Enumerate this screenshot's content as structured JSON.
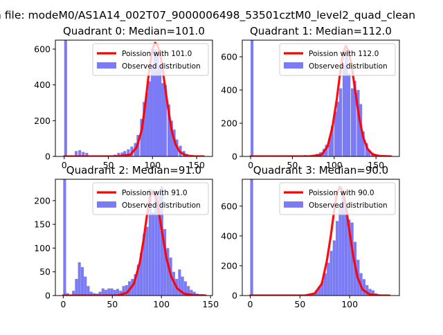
{
  "suptitle": "n file: modeM0/AS1A14_002T07_9000006498_53501cztM0_level2_quad_clean",
  "colors": {
    "bar": "#7b7bf5",
    "line": "#ff0000",
    "axis": "#000000",
    "background": "#ffffff"
  },
  "chart_data": [
    {
      "type": "bar",
      "title": "Quadrant 0: Median=101.0",
      "xlim": [
        -10,
        168
      ],
      "ylim": [
        0,
        650
      ],
      "xticks": [
        0,
        50,
        100,
        150
      ],
      "yticks": [
        0,
        200,
        400,
        600
      ],
      "legend_placement": "top-right",
      "series": [
        {
          "name": "Poission with 101.0",
          "kind": "line",
          "x": [
            0,
            60,
            75,
            82,
            88,
            92,
            96,
            100,
            103,
            106,
            110,
            114,
            118,
            122,
            126,
            131,
            138,
            148,
            158
          ],
          "y": [
            0,
            0,
            10,
            50,
            150,
            300,
            470,
            600,
            635,
            620,
            540,
            400,
            260,
            140,
            70,
            25,
            5,
            0,
            0
          ]
        },
        {
          "name": "Observed distribution",
          "kind": "bar",
          "bin_width": 3.2,
          "bins": [
            [
              0,
              650
            ],
            [
              4,
              5
            ],
            [
              12,
              30
            ],
            [
              16,
              35
            ],
            [
              20,
              25
            ],
            [
              24,
              20
            ],
            [
              56,
              10
            ],
            [
              60,
              20
            ],
            [
              64,
              22
            ],
            [
              67,
              30
            ],
            [
              71,
              40
            ],
            [
              75,
              55
            ],
            [
              79,
              75
            ],
            [
              82,
              120
            ],
            [
              86,
              210
            ],
            [
              89,
              305
            ],
            [
              92,
              355
            ],
            [
              95,
              420
            ],
            [
              98,
              510
            ],
            [
              101,
              600
            ],
            [
              104,
              590
            ],
            [
              107,
              510
            ],
            [
              110,
              410
            ],
            [
              113,
              400
            ],
            [
              117,
              290
            ],
            [
              120,
              200
            ],
            [
              123,
              150
            ],
            [
              126,
              95
            ],
            [
              130,
              60
            ],
            [
              134,
              30
            ],
            [
              137,
              15
            ],
            [
              142,
              6
            ],
            [
              150,
              3
            ]
          ]
        }
      ]
    },
    {
      "type": "bar",
      "title": "Quadrant 1: Median=112.0",
      "xlim": [
        -10,
        178
      ],
      "ylim": [
        0,
        700
      ],
      "xticks": [
        0,
        50,
        100,
        150
      ],
      "yticks": [
        0,
        200,
        400,
        600
      ],
      "legend_placement": "top-right",
      "series": [
        {
          "name": "Poission with 112.0",
          "kind": "line",
          "x": [
            0,
            70,
            85,
            92,
            98,
            103,
            107,
            111,
            114,
            117,
            121,
            125,
            130,
            135,
            140,
            146,
            155,
            168
          ],
          "y": [
            0,
            0,
            10,
            60,
            180,
            340,
            500,
            630,
            665,
            640,
            540,
            400,
            230,
            110,
            45,
            12,
            2,
            0
          ]
        },
        {
          "name": "Observed distribution",
          "kind": "bar",
          "bin_width": 3.4,
          "bins": [
            [
              0,
              700
            ],
            [
              4,
              5
            ],
            [
              8,
              4
            ],
            [
              30,
              4
            ],
            [
              50,
              4
            ],
            [
              64,
              8
            ],
            [
              78,
              15
            ],
            [
              82,
              25
            ],
            [
              86,
              45
            ],
            [
              89,
              70
            ],
            [
              93,
              110
            ],
            [
              96,
              185
            ],
            [
              100,
              270
            ],
            [
              103,
              330
            ],
            [
              106,
              410
            ],
            [
              110,
              550
            ],
            [
              113,
              640
            ],
            [
              116,
              500
            ],
            [
              120,
              410
            ],
            [
              123,
              455
            ],
            [
              127,
              400
            ],
            [
              130,
              315
            ],
            [
              133,
              150
            ],
            [
              137,
              80
            ],
            [
              140,
              40
            ],
            [
              144,
              22
            ],
            [
              148,
              12
            ],
            [
              153,
              6
            ],
            [
              160,
              3
            ]
          ]
        }
      ]
    },
    {
      "type": "bar",
      "title": "Quadrant 2: Median=91.0",
      "xlim": [
        -8,
        152
      ],
      "ylim": [
        0,
        245
      ],
      "xticks": [
        0,
        50,
        100,
        150
      ],
      "yticks": [
        0,
        50,
        100,
        150,
        200
      ],
      "legend_placement": "top-right",
      "series": [
        {
          "name": "Poission with 91.0",
          "kind": "line",
          "x": [
            0,
            55,
            65,
            72,
            78,
            82,
            85,
            88,
            91,
            94,
            97,
            101,
            105,
            110,
            116,
            123,
            132,
            145
          ],
          "y": [
            0,
            0,
            6,
            25,
            70,
            120,
            165,
            205,
            220,
            210,
            180,
            130,
            80,
            40,
            15,
            4,
            1,
            0
          ]
        },
        {
          "name": "Observed distribution",
          "kind": "bar",
          "bin_width": 2.9,
          "bins": [
            [
              0,
              245
            ],
            [
              3,
              5
            ],
            [
              6,
              2
            ],
            [
              9,
              10
            ],
            [
              12,
              35
            ],
            [
              15,
              70
            ],
            [
              18,
              60
            ],
            [
              21,
              40
            ],
            [
              24,
              20
            ],
            [
              27,
              8
            ],
            [
              30,
              5
            ],
            [
              33,
              4
            ],
            [
              36,
              8
            ],
            [
              39,
              15
            ],
            [
              42,
              12
            ],
            [
              45,
              15
            ],
            [
              48,
              15
            ],
            [
              51,
              12
            ],
            [
              54,
              14
            ],
            [
              57,
              10
            ],
            [
              60,
              20
            ],
            [
              63,
              22
            ],
            [
              66,
              30
            ],
            [
              69,
              35
            ],
            [
              72,
              45
            ],
            [
              75,
              65
            ],
            [
              78,
              90
            ],
            [
              81,
              130
            ],
            [
              84,
              145
            ],
            [
              87,
              225
            ],
            [
              90,
              175
            ],
            [
              93,
              220
            ],
            [
              96,
              210
            ],
            [
              99,
              230
            ],
            [
              102,
              140
            ],
            [
              105,
              100
            ],
            [
              108,
              80
            ],
            [
              111,
              50
            ],
            [
              114,
              35
            ],
            [
              117,
              55
            ],
            [
              120,
              40
            ],
            [
              123,
              30
            ],
            [
              126,
              20
            ],
            [
              129,
              12
            ],
            [
              132,
              8
            ],
            [
              135,
              4
            ],
            [
              140,
              3
            ]
          ]
        }
      ]
    },
    {
      "type": "bar",
      "title": "Quadrant 3: Median=90.0",
      "xlim": [
        -8,
        150
      ],
      "ylim": [
        0,
        780
      ],
      "xticks": [
        0,
        50,
        100
      ],
      "yticks": [
        0,
        200,
        400,
        600
      ],
      "legend_placement": "top-right",
      "series": [
        {
          "name": "Poission with 90.0",
          "kind": "line",
          "x": [
            0,
            55,
            65,
            72,
            77,
            81,
            84,
            87,
            90,
            93,
            96,
            100,
            104,
            108,
            113,
            120,
            130,
            140
          ],
          "y": [
            0,
            0,
            15,
            80,
            230,
            400,
            550,
            680,
            730,
            700,
            610,
            420,
            250,
            120,
            40,
            8,
            1,
            0
          ]
        },
        {
          "name": "Observed distribution",
          "kind": "bar",
          "bin_width": 2.9,
          "bins": [
            [
              0,
              780
            ],
            [
              3,
              5
            ],
            [
              58,
              6
            ],
            [
              62,
              15
            ],
            [
              65,
              35
            ],
            [
              68,
              60
            ],
            [
              71,
              95
            ],
            [
              74,
              150
            ],
            [
              77,
              220
            ],
            [
              80,
              300
            ],
            [
              83,
              370
            ],
            [
              86,
              500
            ],
            [
              89,
              610
            ],
            [
              92,
              690
            ],
            [
              95,
              600
            ],
            [
              98,
              510
            ],
            [
              101,
              490
            ],
            [
              104,
              360
            ],
            [
              107,
              240
            ],
            [
              110,
              150
            ],
            [
              113,
              110
            ],
            [
              116,
              70
            ],
            [
              119,
              45
            ],
            [
              122,
              35
            ],
            [
              125,
              15
            ],
            [
              128,
              8
            ],
            [
              133,
              4
            ]
          ]
        }
      ]
    }
  ]
}
